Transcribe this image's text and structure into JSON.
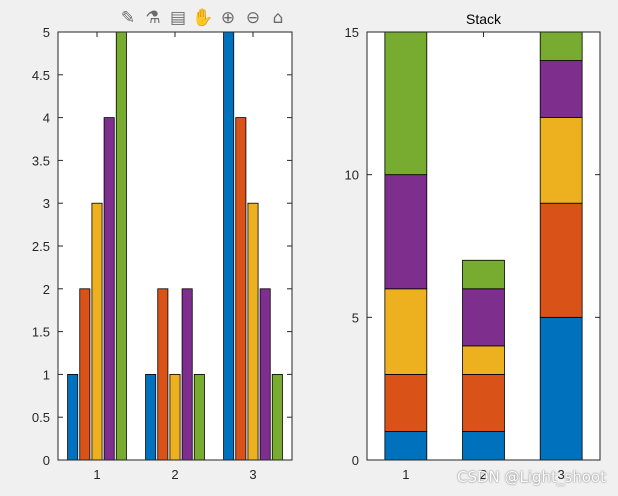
{
  "toolbar": {
    "tools": [
      {
        "icon": "edit-plot-icon",
        "glyph": "✎"
      },
      {
        "icon": "brush-icon",
        "glyph": "⚗"
      },
      {
        "icon": "data-tips-icon",
        "glyph": "▤"
      },
      {
        "icon": "pan-icon",
        "glyph": "✋"
      },
      {
        "icon": "zoom-in-icon",
        "glyph": "⊕"
      },
      {
        "icon": "zoom-out-icon",
        "glyph": "⊖"
      },
      {
        "icon": "home-icon",
        "glyph": "⌂"
      }
    ]
  },
  "colors": [
    "#0072BD",
    "#D95319",
    "#EDB120",
    "#7E2F8E",
    "#77AC30"
  ],
  "chart_data": [
    {
      "type": "bar",
      "title": "",
      "xlabel": "",
      "ylabel": "",
      "categories": [
        "1",
        "2",
        "3"
      ],
      "ylim": [
        0,
        5
      ],
      "yticks": [
        "0",
        "0.5",
        "1",
        "1.5",
        "2",
        "2.5",
        "3",
        "3.5",
        "4",
        "4.5",
        "5"
      ],
      "series": [
        {
          "values": [
            1,
            1,
            5
          ]
        },
        {
          "values": [
            2,
            2,
            4
          ]
        },
        {
          "values": [
            3,
            1,
            3
          ]
        },
        {
          "values": [
            4,
            2,
            2
          ]
        },
        {
          "values": [
            5,
            1,
            1
          ]
        }
      ]
    },
    {
      "type": "bar",
      "stacked": true,
      "title": "Stack",
      "xlabel": "",
      "ylabel": "",
      "categories": [
        "1",
        "2",
        "3"
      ],
      "ylim": [
        0,
        15
      ],
      "yticks": [
        "0",
        "5",
        "10",
        "15"
      ],
      "series": [
        {
          "values": [
            1,
            1,
            5
          ]
        },
        {
          "values": [
            2,
            2,
            4
          ]
        },
        {
          "values": [
            3,
            1,
            3
          ]
        },
        {
          "values": [
            4,
            2,
            2
          ]
        },
        {
          "values": [
            5,
            1,
            1
          ]
        }
      ]
    }
  ],
  "watermark": "CSDN @Light_shoot"
}
